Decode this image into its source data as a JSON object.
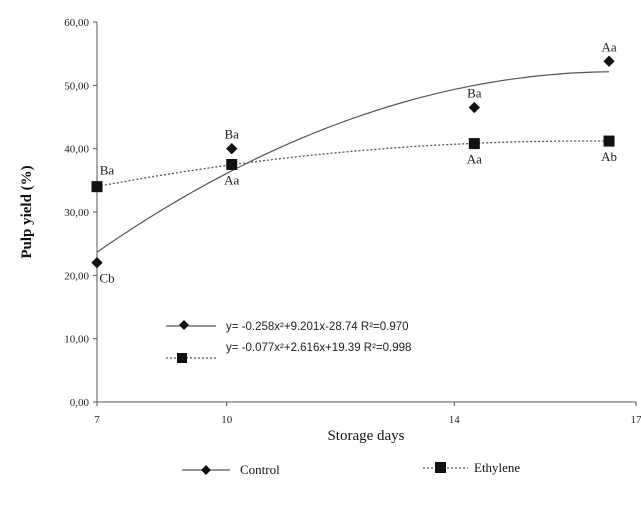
{
  "chart_data": {
    "type": "scatter",
    "xlabel": "Storage days",
    "ylabel": "Pulp yield (%)",
    "ylim": [
      0,
      60
    ],
    "xlim": [
      7,
      17
    ],
    "x_ticks": [
      "7",
      "10",
      "14",
      "17"
    ],
    "y_ticks": [
      "0,00",
      "10,00",
      "20,00",
      "30,00",
      "40,00",
      "50,00",
      "60,00"
    ],
    "grid": false,
    "legend_position": "bottom",
    "series": [
      {
        "name": "Control",
        "marker": "diamond",
        "line_style": "solid",
        "color": "#666666",
        "x": [
          7,
          9.5,
          14,
          16.5
        ],
        "y": [
          22,
          40,
          46.5,
          53.8
        ],
        "labels": [
          "Cb",
          "Ba",
          "Ba",
          "Aa"
        ],
        "fit": {
          "a": -0.258,
          "b": 9.201,
          "c": -28.74
        },
        "equation": "y= -0.258x²+9.201x-28.74   R²=0.970"
      },
      {
        "name": "Ethylene",
        "marker": "square",
        "line_style": "dotted",
        "color": "#444444",
        "x": [
          7,
          9.5,
          14,
          16.5
        ],
        "y": [
          34,
          37.5,
          40.8,
          41.2
        ],
        "labels": [
          "Ba",
          "Aa",
          "Aa",
          "Ab"
        ],
        "fit": {
          "a": -0.077,
          "b": 2.616,
          "c": 19.39
        },
        "equation": "y= -0.077x²+2.616x+19.39   R²=0.998"
      }
    ]
  }
}
